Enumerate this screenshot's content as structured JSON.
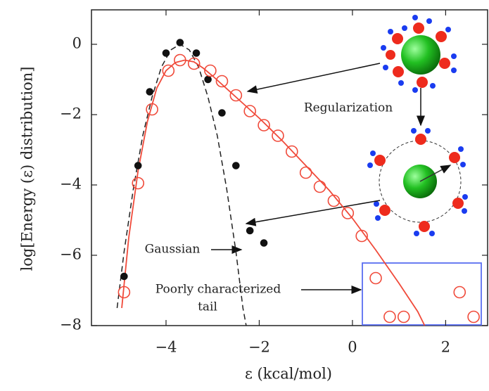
{
  "chart_data": {
    "type": "scatter",
    "x_label": "ε (kcal/mol)",
    "y_label": "log[Energy (ε) distribution]",
    "xlim": [
      -5.6,
      2.9
    ],
    "ylim": [
      -8,
      0.98
    ],
    "xticks": [
      {
        "value": -4,
        "label": "−4"
      },
      {
        "value": -2,
        "label": "−2"
      },
      0,
      2
    ],
    "yticks": [
      0,
      {
        "value": -2,
        "label": "−2"
      },
      {
        "value": -4,
        "label": "−4"
      },
      {
        "value": -6,
        "label": "−6"
      },
      {
        "value": -8,
        "label": "−8"
      }
    ],
    "series": [
      {
        "style": "dashed",
        "color": "#222222",
        "x": [
          -5.05,
          -4.9,
          -4.7,
          -4.5,
          -4.3,
          -4.1,
          -3.9,
          -3.7,
          -3.5,
          -3.3,
          -3.1,
          -2.9,
          -2.7,
          -2.5,
          -2.35,
          -2.28
        ],
        "values": [
          -7.5,
          -5.9,
          -4.1,
          -2.6,
          -1.5,
          -0.65,
          -0.16,
          0,
          -0.16,
          -0.65,
          -1.5,
          -2.6,
          -4.1,
          -5.9,
          -7.5,
          -8.0
        ]
      },
      {
        "style": "line",
        "color": "#f04a3a",
        "x": [
          -4.95,
          -4.8,
          -4.6,
          -4.4,
          -4.2,
          -4.0,
          -3.8,
          -3.6,
          -3.4,
          -3.2,
          -3.0,
          -2.5,
          -2.0,
          -1.5,
          -1.0,
          -0.5,
          0,
          0.5,
          1.0,
          1.4,
          1.55
        ],
        "values": [
          -7.5,
          -5.5,
          -3.6,
          -2.2,
          -1.25,
          -0.75,
          -0.52,
          -0.45,
          -0.5,
          -0.68,
          -0.9,
          -1.5,
          -2.1,
          -2.75,
          -3.45,
          -4.15,
          -4.95,
          -5.85,
          -6.8,
          -7.6,
          -8.0
        ]
      },
      {
        "style": "dots",
        "color": "#111111",
        "x": [
          -4.9,
          -4.6,
          -4.35,
          -4.0,
          -3.7,
          -3.35,
          -3.1,
          -2.8,
          -2.5,
          -2.2,
          -1.9
        ],
        "values": [
          -6.6,
          -3.45,
          -1.35,
          -0.25,
          0.05,
          -0.25,
          -1.0,
          -1.95,
          -3.45,
          -5.3,
          -5.65
        ]
      },
      {
        "style": "circles",
        "color": "#f04a3a",
        "x": [
          -4.9,
          -4.6,
          -4.3,
          -3.95,
          -3.7,
          -3.4,
          -3.05,
          -2.8,
          -2.5,
          -2.2,
          -1.9,
          -1.6,
          -1.3,
          -1.0,
          -0.7,
          -0.4,
          -0.1,
          0.2,
          0.5,
          0.8,
          1.1,
          2.3,
          2.6
        ],
        "values": [
          -7.05,
          -3.95,
          -1.85,
          -0.75,
          -0.45,
          -0.55,
          -0.75,
          -1.05,
          -1.45,
          -1.9,
          -2.3,
          -2.6,
          -3.05,
          -3.65,
          -4.05,
          -4.45,
          -4.8,
          -5.45,
          -6.65,
          -7.75,
          -7.75,
          -7.05,
          -7.75
        ]
      }
    ],
    "annotations": [
      "Regularization",
      "Gaussian",
      "Poorly characterized",
      "tail"
    ]
  }
}
